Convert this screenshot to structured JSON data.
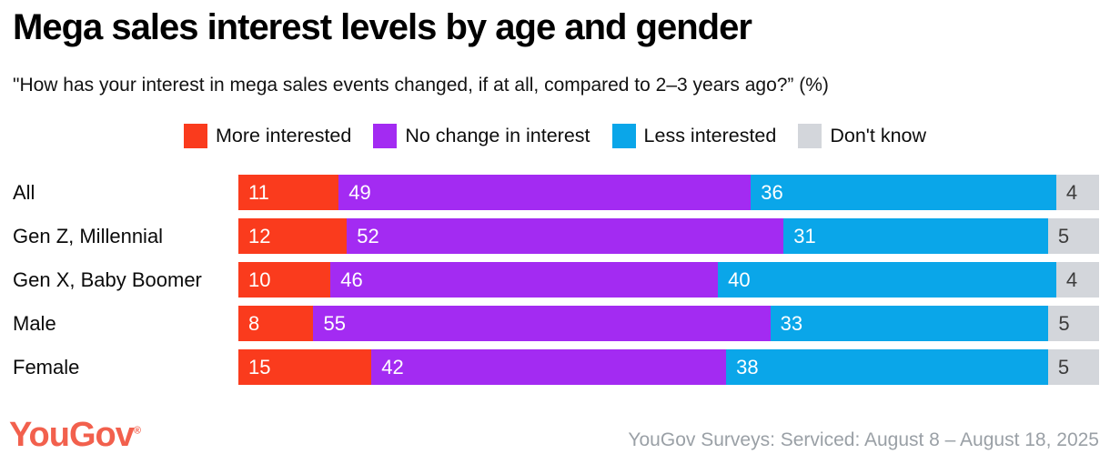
{
  "title": "Mega sales interest levels by age and gender",
  "subtitle": "\"How has your interest in mega sales events changed, if at all, compared to 2–3 years ago?” (%)",
  "colors": {
    "more_interested": "#fa3b1d",
    "no_change": "#a32bf2",
    "less_interested": "#0aa6e9",
    "dont_know": "#d3d6db",
    "dark_label": "#3c3c3c",
    "white_label": "#ffffff"
  },
  "legend": [
    {
      "label": "More interested",
      "color": "#fa3b1d"
    },
    {
      "label": "No change in interest",
      "color": "#a32bf2"
    },
    {
      "label": "Less interested",
      "color": "#0aa6e9"
    },
    {
      "label": "Don't know",
      "color": "#d3d6db"
    }
  ],
  "chart_data": {
    "type": "bar",
    "orientation": "horizontal",
    "stacked": true,
    "xlim": [
      0,
      100
    ],
    "grid": false,
    "legend_position": "top",
    "value_format": "percent",
    "categories": [
      "All",
      "Gen Z, Millennial",
      "Gen X, Baby Boomer",
      "Male",
      "Female"
    ],
    "series": [
      {
        "name": "More interested",
        "color": "#fa3b1d",
        "label_color": "#ffffff",
        "values": [
          11,
          12,
          10,
          8,
          15
        ]
      },
      {
        "name": "No change in interest",
        "color": "#a32bf2",
        "label_color": "#ffffff",
        "values": [
          49,
          52,
          46,
          55,
          42
        ]
      },
      {
        "name": "Less interested",
        "color": "#0aa6e9",
        "label_color": "#ffffff",
        "values": [
          36,
          31,
          40,
          33,
          38
        ]
      },
      {
        "name": "Don't know",
        "color": "#d3d6db",
        "label_color": "#3c3c3c",
        "values": [
          4,
          5,
          4,
          5,
          5
        ]
      }
    ]
  },
  "footer": {
    "logo_text": "YouGov",
    "logo_registered": "®",
    "source": "YouGov Surveys: Serviced: August 8 – August 18, 2025"
  }
}
